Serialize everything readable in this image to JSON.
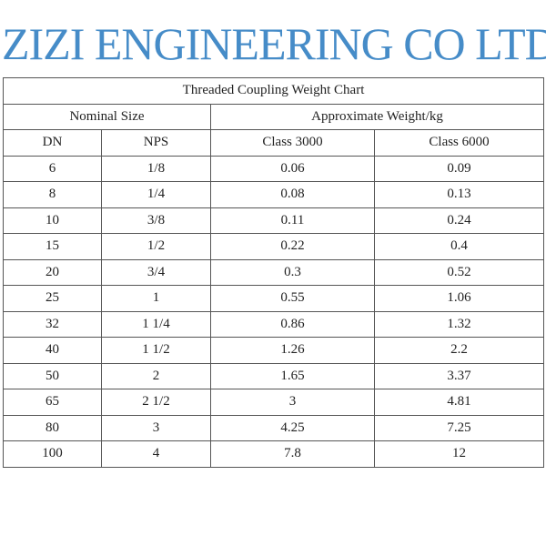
{
  "title": "Threaded Coupling Weight Chart",
  "group_headers": [
    "Nominal Size",
    "Approximate Weight/kg"
  ],
  "columns": [
    "DN",
    "NPS",
    "Class 3000",
    "Class 6000"
  ],
  "rows": [
    [
      "6",
      "1/8",
      "0.06",
      "0.09"
    ],
    [
      "8",
      "1/4",
      "0.08",
      "0.13"
    ],
    [
      "10",
      "3/8",
      "0.11",
      "0.24"
    ],
    [
      "15",
      "1/2",
      "0.22",
      "0.4"
    ],
    [
      "20",
      "3/4",
      "0.3",
      "0.52"
    ],
    [
      "25",
      "1",
      "0.55",
      "1.06"
    ],
    [
      "32",
      "1 1/4",
      "0.86",
      "1.32"
    ],
    [
      "40",
      "1 1/2",
      "1.26",
      "2.2"
    ],
    [
      "50",
      "2",
      "1.65",
      "3.37"
    ],
    [
      "65",
      "2 1/2",
      "3",
      "4.81"
    ],
    [
      "80",
      "3",
      "4.25",
      "7.25"
    ],
    [
      "100",
      "4",
      "7.8",
      "12"
    ]
  ],
  "watermark": "ZIZI ENGINEERING CO LTD",
  "colors": {
    "watermark": "#468cc8",
    "border": "#555555"
  }
}
